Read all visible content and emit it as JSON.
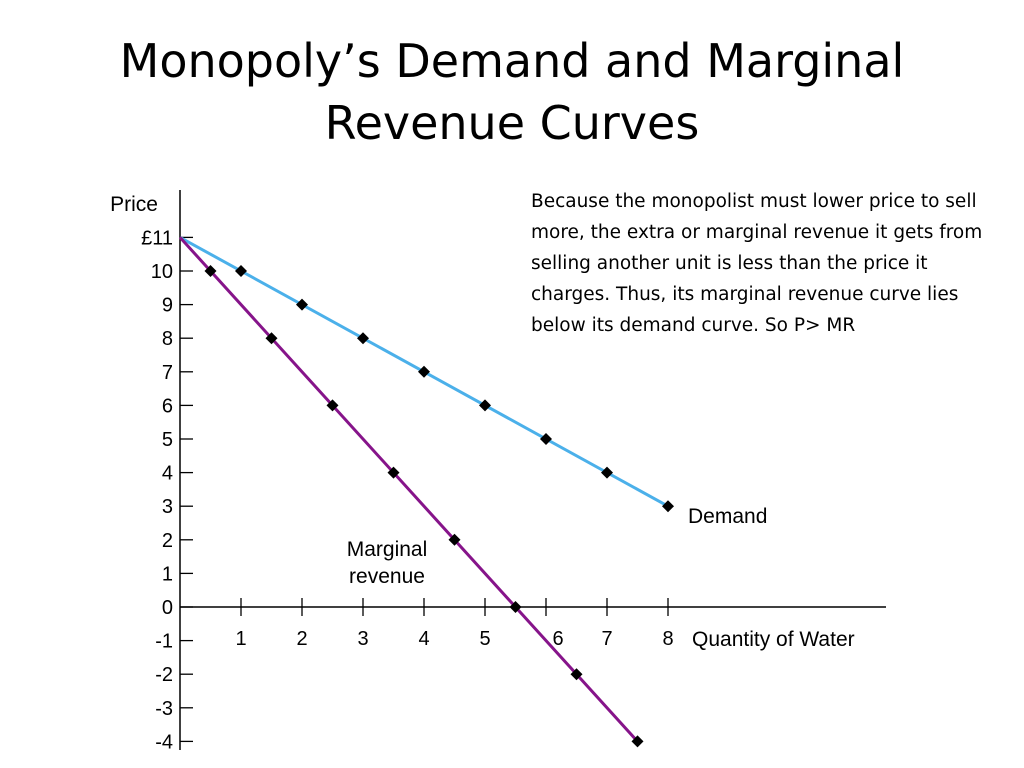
{
  "slide": {
    "title_lines": [
      "Monopoly’s Demand and Marginal",
      "Revenue Curves"
    ],
    "explanation": "Because the monopolist must lower price to sell more, the extra or marginal revenue it gets from selling another unit is less than the price it charges. Thus, its marginal revenue curve lies below its demand curve. So P> MR"
  },
  "chart_data": {
    "type": "line",
    "ylabel": "Price",
    "xlabel": "Quantity of Water",
    "xlim": [
      0,
      8
    ],
    "ylim": [
      -4,
      11
    ],
    "x_ticks": [
      1,
      2,
      3,
      4,
      5,
      6,
      7,
      8
    ],
    "x_tick_labels": [
      "1",
      "2",
      "3",
      "4",
      "5",
      "6",
      "7",
      "8"
    ],
    "y_ticks": [
      11,
      10,
      9,
      8,
      7,
      6,
      5,
      4,
      3,
      2,
      1,
      0,
      -1,
      -2,
      -3,
      -4
    ],
    "y_tick_labels": [
      "£11",
      "10",
      "9",
      "8",
      "7",
      "6",
      "5",
      "4",
      "3",
      "2",
      "1",
      "0",
      "-1",
      "-2",
      "-3",
      "-4"
    ],
    "grid": false,
    "series": [
      {
        "name": "Demand",
        "color": "#4bb0ea",
        "points": [
          [
            1,
            10
          ],
          [
            2,
            9
          ],
          [
            3,
            8
          ],
          [
            4,
            7
          ],
          [
            5,
            6
          ],
          [
            6,
            5
          ],
          [
            7,
            4
          ],
          [
            8,
            3
          ]
        ],
        "line_start": [
          0,
          11
        ],
        "line_end": [
          8,
          3
        ]
      },
      {
        "name": "Marginal revenue",
        "label_lines": [
          "Marginal",
          "revenue"
        ],
        "color": "#86148a",
        "points": [
          [
            0.5,
            10
          ],
          [
            1.5,
            8
          ],
          [
            2.5,
            6
          ],
          [
            3.5,
            4
          ],
          [
            4.5,
            2
          ],
          [
            5.5,
            0
          ],
          [
            6.5,
            -2
          ],
          [
            7.5,
            -4
          ]
        ],
        "line_start": [
          0,
          11
        ],
        "line_end": [
          7.5,
          -4
        ]
      }
    ]
  }
}
